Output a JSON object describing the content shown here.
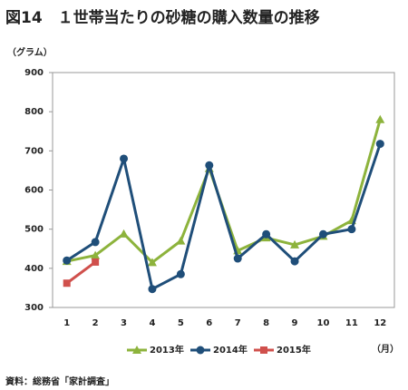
{
  "chart_data": {
    "type": "line",
    "title": "図14　１世帯当たりの砂糖の購入数量の推移",
    "y_unit_label": "（グラム）",
    "x_unit_label": "（月）",
    "source": "資料：総務省「家計調査」",
    "categories": [
      "1",
      "2",
      "3",
      "4",
      "5",
      "6",
      "7",
      "8",
      "9",
      "10",
      "11",
      "12"
    ],
    "series": [
      {
        "name": "2013年",
        "color": "#8db33c",
        "marker": "triangle",
        "values": [
          418,
          433,
          488,
          415,
          470,
          655,
          445,
          478,
          460,
          482,
          522,
          780
        ]
      },
      {
        "name": "2014年",
        "color": "#1f4e79",
        "marker": "circle",
        "values": [
          420,
          467,
          680,
          347,
          385,
          663,
          425,
          487,
          418,
          487,
          500,
          718
        ]
      },
      {
        "name": "2015年",
        "color": "#d0504c",
        "marker": "square",
        "values": [
          362,
          416,
          null,
          null,
          null,
          null,
          null,
          null,
          null,
          null,
          null,
          null
        ]
      }
    ],
    "ylim": [
      300,
      900
    ],
    "yticks": [
      300,
      400,
      500,
      600,
      700,
      800,
      900
    ],
    "grid": false,
    "legend": "bottom"
  }
}
